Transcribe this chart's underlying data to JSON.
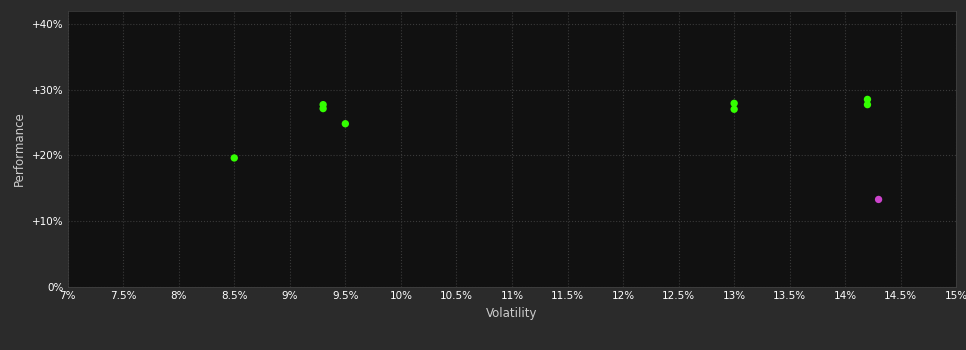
{
  "background_color": "#2b2b2b",
  "plot_bg_color": "#111111",
  "grid_color": "#3a3a3a",
  "grid_style": ":",
  "xlabel": "Volatility",
  "ylabel": "Performance",
  "xlim": [
    0.07,
    0.15
  ],
  "ylim": [
    0.0,
    0.42
  ],
  "xticks": [
    0.07,
    0.075,
    0.08,
    0.085,
    0.09,
    0.095,
    0.1,
    0.105,
    0.11,
    0.115,
    0.12,
    0.125,
    0.13,
    0.135,
    0.14,
    0.145,
    0.15
  ],
  "yticks": [
    0.0,
    0.1,
    0.2,
    0.3,
    0.4
  ],
  "ytick_labels": [
    "0%",
    "+10%",
    "+20%",
    "+30%",
    "+40%"
  ],
  "xtick_labels": [
    "7%",
    "7.5%",
    "8%",
    "8.5%",
    "9%",
    "9.5%",
    "10%",
    "10.5%",
    "11%",
    "11.5%",
    "12%",
    "12.5%",
    "13%",
    "13.5%",
    "14%",
    "14.5%",
    "15%"
  ],
  "green_points": [
    [
      0.085,
      0.196
    ],
    [
      0.093,
      0.277
    ],
    [
      0.093,
      0.271
    ],
    [
      0.095,
      0.248
    ],
    [
      0.13,
      0.279
    ],
    [
      0.13,
      0.27
    ],
    [
      0.142,
      0.285
    ],
    [
      0.142,
      0.277
    ]
  ],
  "magenta_points": [
    [
      0.143,
      0.133
    ]
  ],
  "green_color": "#33ff00",
  "magenta_color": "#cc44cc",
  "marker_size": 28,
  "tick_color": "#ffffff",
  "tick_fontsize": 7.5,
  "label_fontsize": 8.5,
  "label_color": "#cccccc",
  "spine_color": "#444444"
}
